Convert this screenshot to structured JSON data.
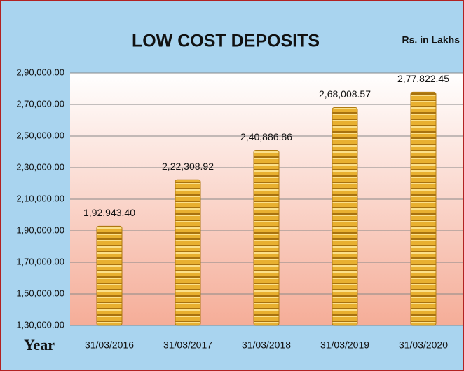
{
  "chart_data": {
    "type": "bar",
    "title": "LOW COST DEPOSITS",
    "subtitle": "Rs. in Lakhs",
    "x_label": "Year",
    "categories": [
      "31/03/2016",
      "31/03/2017",
      "31/03/2018",
      "31/03/2019",
      "31/03/2020"
    ],
    "values": [
      192943.4,
      222308.92,
      240886.86,
      268008.57,
      277822.45
    ],
    "value_labels": [
      "1,92,943.40",
      "2,22,308.92",
      "2,40,886.86",
      "2,68,008.57",
      "2,77,822.45"
    ],
    "color": "#e8b030",
    "ylim": [
      130000,
      290000
    ],
    "yticks": [
      {
        "value": 130000,
        "label": "1,30,000.00"
      },
      {
        "value": 150000,
        "label": "1,50,000.00"
      },
      {
        "value": 170000,
        "label": "1,70,000.00"
      },
      {
        "value": 190000,
        "label": "1,90,000.00"
      },
      {
        "value": 210000,
        "label": "2,10,000.00"
      },
      {
        "value": 230000,
        "label": "2,30,000.00"
      },
      {
        "value": 250000,
        "label": "2,50,000.00"
      },
      {
        "value": 270000,
        "label": "2,70,000.00"
      },
      {
        "value": 290000,
        "label": "2,90,000.00"
      }
    ],
    "grid": true
  }
}
